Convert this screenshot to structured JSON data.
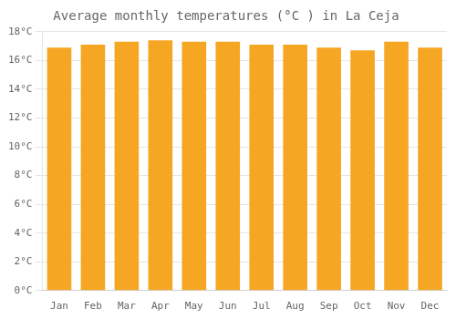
{
  "chart_data": {
    "type": "bar",
    "title": "Average monthly temperatures (°C ) in La Ceja",
    "categories": [
      "Jan",
      "Feb",
      "Mar",
      "Apr",
      "May",
      "Jun",
      "Jul",
      "Aug",
      "Sep",
      "Oct",
      "Nov",
      "Dec"
    ],
    "values": [
      16.9,
      17.1,
      17.3,
      17.4,
      17.3,
      17.3,
      17.1,
      17.1,
      16.9,
      16.7,
      17.3,
      16.9
    ],
    "color": "#F5A623",
    "ylim": [
      0,
      18
    ],
    "yticks": [
      {
        "value": 0,
        "label": "0°C"
      },
      {
        "value": 2,
        "label": "2°C"
      },
      {
        "value": 4,
        "label": "4°C"
      },
      {
        "value": 6,
        "label": "6°C"
      },
      {
        "value": 8,
        "label": "8°C"
      },
      {
        "value": 10,
        "label": "10°C"
      },
      {
        "value": 12,
        "label": "12°C"
      },
      {
        "value": 14,
        "label": "14°C"
      },
      {
        "value": 16,
        "label": "16°C"
      },
      {
        "value": 18,
        "label": "18°C"
      }
    ],
    "grid": true
  }
}
